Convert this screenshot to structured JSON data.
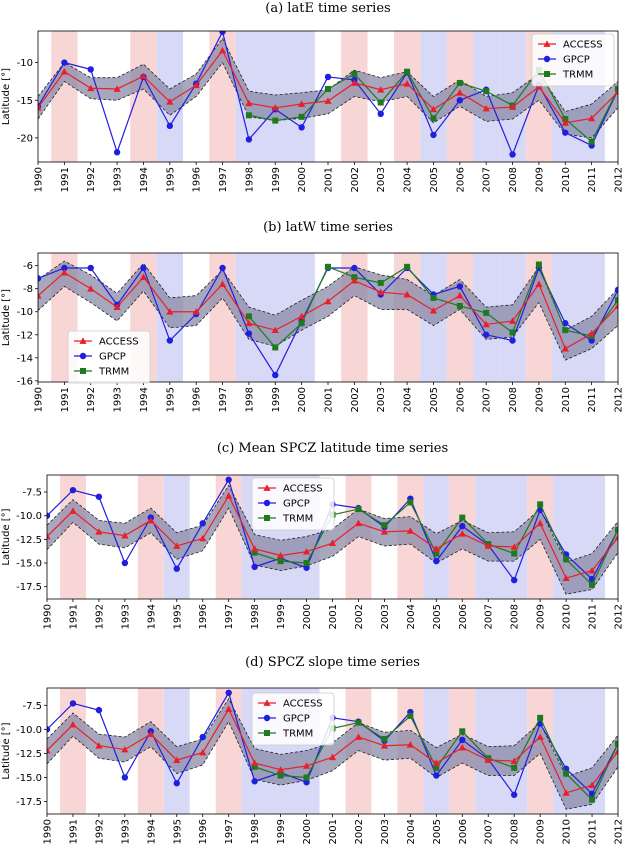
{
  "chart_data": [
    {
      "type": "line",
      "title": "(a) latE time series",
      "ylabel": "Latitude [°]",
      "x": [
        1990,
        1991,
        1992,
        1993,
        1994,
        1995,
        1996,
        1997,
        1998,
        1999,
        2000,
        2001,
        2002,
        2003,
        2004,
        2005,
        2006,
        2007,
        2008,
        2009,
        2010,
        2011,
        2012
      ],
      "ylim": [
        -23.2,
        -5.8
      ],
      "yticks": [
        -10,
        -15,
        -20
      ],
      "legend_position": "top-right",
      "band": {
        "upper": [
          -14.5,
          -10.0,
          -12.0,
          -12.0,
          -10.2,
          -13.5,
          -11.5,
          -6.8,
          -13.8,
          -14.3,
          -14.0,
          -13.6,
          -11.0,
          -12.0,
          -11.2,
          -14.5,
          -12.3,
          -14.5,
          -14.0,
          -11.5,
          -16.5,
          -15.5,
          -12.5
        ],
        "lower": [
          -17.5,
          -12.5,
          -14.8,
          -15.0,
          -13.5,
          -17.0,
          -14.5,
          -10.0,
          -17.2,
          -17.7,
          -17.4,
          -16.8,
          -14.5,
          -15.2,
          -14.5,
          -18.0,
          -15.8,
          -17.8,
          -17.5,
          -15.0,
          -19.5,
          -20.0,
          -16.0
        ]
      },
      "series": [
        {
          "name": "ACCESS",
          "color": "#e8202a",
          "marker": "triangle",
          "values": [
            -16.0,
            -11.2,
            -13.4,
            -13.5,
            -11.8,
            -15.2,
            -13.0,
            -8.4,
            -15.4,
            -16.0,
            -15.5,
            -15.1,
            -12.7,
            -13.6,
            -12.8,
            -16.2,
            -14.0,
            -16.1,
            -15.9,
            -13.2,
            -18.0,
            -17.4,
            -13.9
          ]
        },
        {
          "name": "GPCP",
          "color": "#1f1fe0",
          "marker": "circle",
          "values": [
            -15.8,
            -10.0,
            -10.9,
            -21.9,
            -11.9,
            -18.4,
            -12.8,
            -5.9,
            -20.2,
            -16.2,
            -18.6,
            -11.9,
            -12.3,
            -16.8,
            -11.3,
            -19.6,
            -15.0,
            -13.6,
            -22.2,
            -13.0,
            -19.3,
            -21.0,
            -13.6
          ]
        },
        {
          "name": "TRMM",
          "color": "#1f7a1f",
          "marker": "square",
          "values": [
            null,
            null,
            null,
            null,
            null,
            null,
            null,
            null,
            -17.0,
            -17.7,
            -17.2,
            -13.5,
            -11.5,
            -15.3,
            -11.2,
            -17.4,
            -12.7,
            -13.8,
            -15.7,
            -11.0,
            -17.5,
            -20.5,
            -13.5
          ]
        }
      ]
    },
    {
      "type": "line",
      "title": "(b) latW time series",
      "ylabel": "Latitude [°]",
      "x": [
        1990,
        1991,
        1992,
        1993,
        1994,
        1995,
        1996,
        1997,
        1998,
        1999,
        2000,
        2001,
        2002,
        2003,
        2004,
        2005,
        2006,
        2007,
        2008,
        2009,
        2010,
        2011,
        2012
      ],
      "ylim": [
        -16.1,
        -4.9
      ],
      "yticks": [
        -6,
        -8,
        -10,
        -12,
        -14,
        -16
      ],
      "legend_position": "lower-left",
      "band": {
        "upper": [
          -7.2,
          -5.6,
          -6.8,
          -8.4,
          -5.8,
          -8.8,
          -8.6,
          -6.4,
          -9.6,
          -10.3,
          -9.0,
          -7.8,
          -6.1,
          -6.8,
          -7.2,
          -8.6,
          -7.2,
          -9.6,
          -9.4,
          -6.1,
          -11.6,
          -10.4,
          -8.0
        ],
        "lower": [
          -9.9,
          -7.8,
          -9.2,
          -10.8,
          -8.2,
          -11.4,
          -11.2,
          -8.8,
          -12.4,
          -13.0,
          -11.6,
          -10.4,
          -8.6,
          -9.8,
          -9.8,
          -11.2,
          -9.8,
          -12.4,
          -12.2,
          -9.2,
          -14.2,
          -13.2,
          -11.2
        ]
      },
      "series": [
        {
          "name": "ACCESS",
          "color": "#e8202a",
          "marker": "triangle",
          "values": [
            -8.6,
            -6.6,
            -8.0,
            -9.6,
            -7.0,
            -10.0,
            -10.0,
            -7.6,
            -11.0,
            -11.6,
            -10.4,
            -9.1,
            -7.3,
            -8.3,
            -8.5,
            -9.9,
            -8.6,
            -11.1,
            -10.8,
            -7.6,
            -13.2,
            -11.9,
            -9.5
          ]
        },
        {
          "name": "GPCP",
          "color": "#1f1fe0",
          "marker": "circle",
          "values": [
            -7.1,
            -6.2,
            -6.2,
            -9.4,
            -6.2,
            -12.5,
            -10.2,
            -6.2,
            -11.9,
            -15.5,
            -10.8,
            -6.2,
            -6.2,
            -8.5,
            -6.2,
            -8.5,
            -7.8,
            -12.0,
            -12.5,
            -6.2,
            -11.0,
            -12.5,
            -8.1
          ]
        },
        {
          "name": "TRMM",
          "color": "#1f7a1f",
          "marker": "square",
          "values": [
            null,
            null,
            null,
            null,
            null,
            null,
            null,
            null,
            -10.4,
            -13.1,
            -11.0,
            -6.1,
            -7.0,
            -7.5,
            -6.1,
            -8.8,
            -9.5,
            -10.1,
            -11.8,
            -5.9,
            -11.6,
            -12.1,
            -9.0
          ]
        }
      ]
    },
    {
      "type": "line",
      "title": "(c) Mean SPCZ latitude time series",
      "ylabel": "Latitude [°]",
      "x": [
        1990,
        1991,
        1992,
        1993,
        1994,
        1995,
        1996,
        1997,
        1998,
        1999,
        2000,
        2001,
        2002,
        2003,
        2004,
        2005,
        2006,
        2007,
        2008,
        2009,
        2010,
        2011,
        2012
      ],
      "ylim": [
        -18.8,
        -5.7
      ],
      "yticks": [
        -7.5,
        -10.0,
        -12.5,
        -15.0,
        -17.5
      ],
      "legend_position": "top-center",
      "band": {
        "upper": [
          -11.0,
          -8.3,
          -10.5,
          -10.8,
          -9.2,
          -11.8,
          -11.0,
          -6.8,
          -12.0,
          -12.6,
          -12.2,
          -11.4,
          -9.3,
          -10.3,
          -10.1,
          -11.9,
          -10.5,
          -11.8,
          -11.7,
          -9.3,
          -14.9,
          -14.0,
          -10.6
        ],
        "lower": [
          -13.6,
          -10.7,
          -13.0,
          -13.4,
          -11.8,
          -14.6,
          -13.7,
          -9.2,
          -15.2,
          -15.8,
          -15.3,
          -14.3,
          -12.2,
          -13.2,
          -13.0,
          -15.0,
          -13.5,
          -14.8,
          -14.8,
          -12.5,
          -18.3,
          -17.8,
          -13.9
        ]
      },
      "series": [
        {
          "name": "ACCESS",
          "color": "#e8202a",
          "marker": "triangle",
          "values": [
            -12.2,
            -9.5,
            -11.7,
            -12.1,
            -10.5,
            -13.2,
            -12.4,
            -7.9,
            -13.5,
            -14.2,
            -13.8,
            -12.9,
            -10.8,
            -11.7,
            -11.6,
            -13.5,
            -11.9,
            -13.2,
            -13.3,
            -10.8,
            -16.6,
            -15.8,
            -12.3
          ]
        },
        {
          "name": "GPCP",
          "color": "#1f1fe0",
          "marker": "circle",
          "values": [
            -10.0,
            -7.3,
            -8.0,
            -15.0,
            -10.2,
            -15.6,
            -10.8,
            -6.2,
            -15.4,
            -14.5,
            -15.5,
            -8.8,
            -9.2,
            -11.2,
            -8.2,
            -14.8,
            -11.1,
            -13.1,
            -16.8,
            -9.4,
            -14.1,
            -16.7,
            -11.5
          ]
        },
        {
          "name": "TRMM",
          "color": "#1f7a1f",
          "marker": "square",
          "values": [
            null,
            null,
            null,
            null,
            null,
            null,
            null,
            null,
            -13.9,
            -14.8,
            -15.0,
            -9.9,
            -9.3,
            -11.0,
            -8.6,
            -14.0,
            -10.2,
            -13.0,
            -14.0,
            -8.8,
            -14.6,
            -17.3,
            -11.5
          ]
        }
      ]
    },
    {
      "type": "line",
      "title": "(d) SPCZ slope time series",
      "ylabel": "Latitude [°]",
      "x": [
        1990,
        1991,
        1992,
        1993,
        1994,
        1995,
        1996,
        1997,
        1998,
        1999,
        2000,
        2001,
        2002,
        2003,
        2004,
        2005,
        2006,
        2007,
        2008,
        2009,
        2010,
        2011,
        2012
      ],
      "ylim": [
        -18.8,
        -5.7
      ],
      "yticks": [
        -7.5,
        -10.0,
        -12.5,
        -15.0,
        -17.5
      ],
      "legend_position": "top-center",
      "band": {
        "upper": [
          -11.0,
          -8.3,
          -10.5,
          -10.8,
          -9.2,
          -11.8,
          -11.0,
          -6.8,
          -12.0,
          -12.6,
          -12.2,
          -11.4,
          -9.3,
          -10.3,
          -10.1,
          -11.9,
          -10.5,
          -11.8,
          -11.7,
          -9.3,
          -14.9,
          -14.0,
          -10.6
        ],
        "lower": [
          -13.6,
          -10.7,
          -13.0,
          -13.4,
          -11.8,
          -14.6,
          -13.7,
          -9.2,
          -15.2,
          -15.8,
          -15.3,
          -14.3,
          -12.2,
          -13.2,
          -13.0,
          -15.0,
          -13.5,
          -14.8,
          -14.8,
          -12.5,
          -18.3,
          -17.8,
          -13.9
        ]
      },
      "series": [
        {
          "name": "ACCESS",
          "color": "#e8202a",
          "marker": "triangle",
          "values": [
            -12.2,
            -9.5,
            -11.7,
            -12.1,
            -10.5,
            -13.2,
            -12.4,
            -7.9,
            -13.5,
            -14.2,
            -13.8,
            -12.9,
            -10.8,
            -11.7,
            -11.6,
            -13.5,
            -11.9,
            -13.2,
            -13.3,
            -10.8,
            -16.6,
            -15.8,
            -12.3
          ]
        },
        {
          "name": "GPCP",
          "color": "#1f1fe0",
          "marker": "circle",
          "values": [
            -10.0,
            -7.3,
            -8.0,
            -15.0,
            -10.2,
            -15.6,
            -10.8,
            -6.2,
            -15.4,
            -14.5,
            -15.5,
            -8.8,
            -9.2,
            -11.2,
            -8.2,
            -14.8,
            -11.1,
            -13.1,
            -16.8,
            -9.4,
            -14.1,
            -16.7,
            -11.5
          ]
        },
        {
          "name": "TRMM",
          "color": "#1f7a1f",
          "marker": "square",
          "values": [
            null,
            null,
            null,
            null,
            null,
            null,
            null,
            null,
            -13.9,
            -14.8,
            -15.0,
            -9.9,
            -9.3,
            -11.0,
            -8.6,
            -14.0,
            -10.2,
            -13.0,
            -14.0,
            -8.8,
            -14.6,
            -17.3,
            -11.5
          ]
        }
      ]
    }
  ],
  "shading": {
    "el_nino_years": [
      1991,
      1994,
      1997,
      2002,
      2004,
      2006,
      2009
    ],
    "la_nina_years": [
      1995,
      1998,
      1999,
      2000,
      2005,
      2007,
      2008,
      2010,
      2011
    ],
    "el_nino_color": "#f9d6d6",
    "la_nina_color": "#d8d8f7",
    "band_color": "#8a8aa8"
  }
}
